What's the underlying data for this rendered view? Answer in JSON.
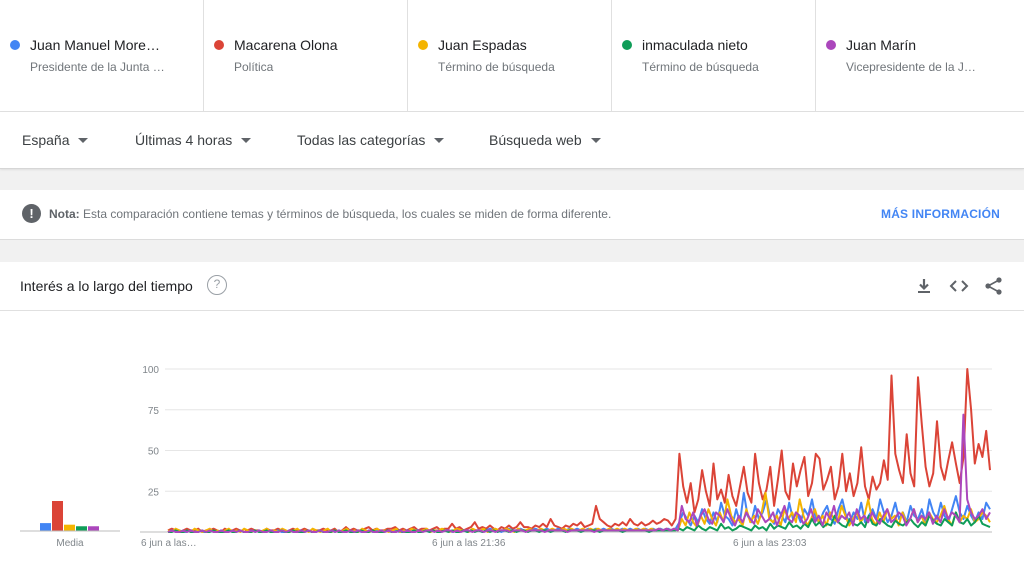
{
  "terms": [
    {
      "name": "Juan Manuel More…",
      "sub": "Presidente de la Junta …",
      "color": "#4285f4"
    },
    {
      "name": "Macarena Olona",
      "sub": "Política",
      "color": "#db4437"
    },
    {
      "name": "Juan Espadas",
      "sub": "Término de búsqueda",
      "color": "#f4b400"
    },
    {
      "name": "inmaculada nieto",
      "sub": "Término de búsqueda",
      "color": "#0f9d58"
    },
    {
      "name": "Juan Marín",
      "sub": "Vicepresidente de la J…",
      "color": "#ab47bc"
    }
  ],
  "filters": {
    "region": "España",
    "time": "Últimas 4 horas",
    "category": "Todas las categorías",
    "search_type": "Búsqueda web"
  },
  "note": {
    "label": "Nota:",
    "text": "Esta comparación contiene temas y términos de búsqueda, los cuales se miden de forma diferente.",
    "link": "MÁS INFORMACIÓN"
  },
  "chart_card": {
    "title": "Interés a lo largo del tiempo",
    "help_icon": "help-circle-icon",
    "actions": [
      "download-icon",
      "embed-code-icon",
      "share-icon"
    ]
  },
  "chart_data": {
    "type": "line",
    "ylim": [
      0,
      100
    ],
    "yticks": [
      "100",
      "75",
      "50",
      "25"
    ],
    "xticks": [
      "6 jun a las…",
      "6 jun a las 21:36",
      "6 jun a las 23:03"
    ],
    "average_label": "Media",
    "averages": [
      {
        "name": "Juan Manuel More…",
        "value": 5
      },
      {
        "name": "Macarena Olona",
        "value": 19
      },
      {
        "name": "Juan Espadas",
        "value": 4
      },
      {
        "name": "inmaculada nieto",
        "value": 3
      },
      {
        "name": "Juan Marín",
        "value": 3
      }
    ],
    "series": [
      {
        "name": "Macarena Olona",
        "color": "#db4437",
        "values": [
          1,
          2,
          1,
          0,
          1,
          2,
          1,
          1,
          2,
          0,
          1,
          1,
          2,
          1,
          0,
          2,
          1,
          1,
          2,
          1,
          0,
          1,
          2,
          1,
          1,
          0,
          2,
          1,
          1,
          2,
          1,
          0,
          1,
          2,
          1,
          1,
          2,
          1,
          0,
          1,
          1,
          2,
          1,
          1,
          2,
          0,
          1,
          3,
          1,
          2,
          1,
          1,
          2,
          3,
          1,
          2,
          1,
          1,
          2,
          2,
          3,
          1,
          2,
          1,
          2,
          3,
          1,
          2,
          2,
          1,
          2,
          3,
          1,
          2,
          2,
          5,
          2,
          3,
          1,
          2,
          3,
          6,
          2,
          3,
          2,
          4,
          2,
          1,
          3,
          2,
          4,
          2,
          3,
          6,
          3,
          3,
          2,
          4,
          3,
          5,
          3,
          8,
          4,
          3,
          2,
          4,
          3,
          5,
          4,
          6,
          3,
          4,
          5,
          16,
          8,
          6,
          4,
          3,
          5,
          4,
          6,
          4,
          8,
          5,
          4,
          6,
          4,
          5,
          7,
          5,
          6,
          8,
          7,
          4,
          8,
          48,
          28,
          18,
          30,
          12,
          20,
          38,
          25,
          16,
          42,
          20,
          26,
          18,
          35,
          22,
          16,
          28,
          40,
          24,
          18,
          48,
          30,
          20,
          26,
          40,
          16,
          32,
          50,
          25,
          20,
          42,
          28,
          38,
          46,
          22,
          30,
          48,
          45,
          26,
          32,
          40,
          20,
          28,
          48,
          25,
          36,
          22,
          30,
          52,
          28,
          20,
          34,
          26,
          30,
          44,
          32,
          96,
          48,
          38,
          30,
          60,
          36,
          28,
          95,
          66,
          40,
          28,
          36,
          68,
          40,
          32,
          44,
          55,
          42,
          30,
          46,
          100,
          75,
          42,
          54,
          46,
          62,
          38
        ]
      },
      {
        "name": "Juan Manuel More…",
        "color": "#4285f4",
        "values": [
          0,
          1,
          0,
          1,
          0,
          0,
          1,
          0,
          1,
          0,
          0,
          1,
          0,
          0,
          1,
          0,
          1,
          0,
          0,
          1,
          0,
          0,
          1,
          0,
          1,
          0,
          0,
          1,
          0,
          1,
          0,
          0,
          1,
          0,
          0,
          1,
          0,
          1,
          0,
          0,
          1,
          0,
          0,
          1,
          0,
          1,
          0,
          0,
          1,
          0,
          1,
          0,
          0,
          1,
          0,
          1,
          0,
          0,
          1,
          0,
          1,
          0,
          0,
          1,
          0,
          1,
          1,
          0,
          1,
          0,
          1,
          1,
          0,
          1,
          1,
          0,
          1,
          1,
          1,
          0,
          1,
          1,
          1,
          0,
          1,
          2,
          1,
          1,
          0,
          1,
          2,
          1,
          1,
          2,
          1,
          1,
          1,
          2,
          1,
          1,
          2,
          1,
          1,
          2,
          1,
          1,
          2,
          1,
          2,
          1,
          1,
          2,
          1,
          2,
          1,
          2,
          1,
          2,
          1,
          1,
          2,
          1,
          2,
          1,
          2,
          1,
          2,
          1,
          2,
          1,
          2,
          1,
          2,
          1,
          2,
          6,
          12,
          8,
          4,
          10,
          6,
          14,
          8,
          5,
          12,
          6,
          18,
          10,
          8,
          4,
          14,
          6,
          24,
          10,
          6,
          16,
          8,
          12,
          20,
          8,
          5,
          14,
          10,
          6,
          18,
          8,
          12,
          6,
          14,
          10,
          20,
          8,
          6,
          12,
          16,
          8,
          5,
          14,
          20,
          10,
          6,
          12,
          8,
          18,
          6,
          10,
          14,
          8,
          20,
          12,
          6,
          10,
          18,
          8,
          12,
          6,
          16,
          10,
          8,
          14,
          6,
          20,
          12,
          8,
          18,
          10,
          6,
          14,
          22,
          12,
          8,
          16,
          10,
          6,
          12,
          8,
          18,
          14
        ]
      },
      {
        "name": "Juan Espadas",
        "color": "#f4b400",
        "values": [
          1,
          0,
          2,
          1,
          0,
          1,
          0,
          2,
          1,
          0,
          1,
          2,
          0,
          1,
          0,
          1,
          2,
          0,
          1,
          0,
          2,
          1,
          0,
          1,
          0,
          1,
          2,
          0,
          1,
          0,
          2,
          1,
          0,
          1,
          2,
          0,
          1,
          0,
          2,
          1,
          0,
          1,
          2,
          0,
          1,
          0,
          1,
          2,
          0,
          1,
          0,
          2,
          1,
          0,
          1,
          2,
          0,
          1,
          0,
          1,
          2,
          0,
          1,
          0,
          2,
          1,
          0,
          1,
          2,
          0,
          1,
          1,
          2,
          1,
          0,
          1,
          2,
          1,
          1,
          0,
          2,
          1,
          1,
          2,
          0,
          1,
          2,
          1,
          1,
          2,
          1,
          0,
          2,
          1,
          1,
          2,
          1,
          1,
          2,
          1,
          1,
          2,
          1,
          1,
          2,
          1,
          2,
          1,
          1,
          2,
          1,
          2,
          1,
          2,
          1,
          1,
          2,
          1,
          2,
          1,
          2,
          1,
          1,
          2,
          1,
          2,
          1,
          2,
          1,
          2,
          1,
          2,
          1,
          2,
          1,
          8,
          4,
          12,
          6,
          3,
          10,
          5,
          14,
          8,
          4,
          12,
          6,
          20,
          10,
          6,
          8,
          4,
          14,
          6,
          10,
          5,
          12,
          24,
          8,
          6,
          10,
          4,
          14,
          8,
          12,
          6,
          20,
          10,
          4,
          8,
          14,
          6,
          10,
          4,
          12,
          8,
          6,
          16,
          10,
          4,
          8,
          12,
          6,
          10,
          20,
          8,
          4,
          12,
          6,
          14,
          8,
          10,
          4,
          12,
          6,
          8,
          14,
          6,
          10,
          4,
          12,
          8,
          6,
          10,
          16,
          8,
          4,
          12,
          6,
          10,
          8,
          14,
          6,
          8,
          12,
          10,
          6
        ]
      },
      {
        "name": "inmaculada nieto",
        "color": "#0f9d58",
        "values": [
          0,
          0,
          1,
          0,
          0,
          1,
          0,
          0,
          0,
          1,
          0,
          0,
          1,
          0,
          0,
          0,
          1,
          0,
          0,
          1,
          0,
          0,
          0,
          1,
          0,
          0,
          1,
          0,
          0,
          0,
          1,
          0,
          0,
          1,
          0,
          0,
          0,
          1,
          0,
          0,
          1,
          0,
          0,
          0,
          1,
          0,
          0,
          1,
          0,
          0,
          0,
          1,
          0,
          0,
          1,
          0,
          0,
          0,
          1,
          0,
          0,
          1,
          0,
          0,
          0,
          1,
          0,
          0,
          1,
          0,
          1,
          0,
          0,
          1,
          0,
          1,
          0,
          0,
          1,
          0,
          1,
          0,
          1,
          0,
          1,
          0,
          1,
          0,
          1,
          1,
          0,
          1,
          0,
          1,
          1,
          0,
          1,
          1,
          0,
          1,
          1,
          0,
          1,
          1,
          1,
          0,
          1,
          1,
          1,
          0,
          1,
          1,
          1,
          1,
          0,
          1,
          1,
          1,
          1,
          1,
          0,
          1,
          1,
          1,
          1,
          1,
          1,
          0,
          1,
          1,
          1,
          1,
          1,
          1,
          1,
          2,
          1,
          3,
          2,
          1,
          4,
          2,
          1,
          3,
          2,
          1,
          5,
          2,
          3,
          1,
          2,
          4,
          3,
          2,
          1,
          4,
          2,
          3,
          1,
          5,
          2,
          4,
          3,
          2,
          6,
          3,
          4,
          2,
          5,
          3,
          8,
          4,
          6,
          3,
          5,
          4,
          10,
          6,
          4,
          3,
          8,
          5,
          4,
          6,
          3,
          10,
          5,
          4,
          8,
          6,
          4,
          3,
          7,
          5,
          4,
          6,
          8,
          5,
          3,
          6,
          4,
          10,
          7,
          5,
          4,
          8,
          6,
          4,
          12,
          6,
          5,
          8,
          4,
          6,
          10,
          5,
          4,
          3
        ]
      },
      {
        "name": "Juan Marín",
        "color": "#ab47bc",
        "values": [
          0,
          1,
          0,
          0,
          1,
          0,
          1,
          0,
          0,
          1,
          0,
          1,
          0,
          0,
          1,
          0,
          0,
          1,
          0,
          1,
          0,
          0,
          1,
          0,
          1,
          0,
          0,
          1,
          0,
          0,
          1,
          0,
          1,
          0,
          0,
          1,
          0,
          1,
          0,
          0,
          1,
          0,
          0,
          1,
          0,
          1,
          0,
          0,
          1,
          0,
          1,
          0,
          0,
          1,
          0,
          0,
          1,
          0,
          1,
          0,
          0,
          1,
          0,
          1,
          0,
          0,
          1,
          0,
          1,
          1,
          0,
          1,
          0,
          1,
          1,
          0,
          1,
          0,
          1,
          1,
          0,
          1,
          1,
          0,
          1,
          1,
          0,
          1,
          1,
          1,
          0,
          1,
          1,
          1,
          0,
          1,
          1,
          1,
          1,
          0,
          1,
          1,
          1,
          1,
          1,
          0,
          1,
          1,
          1,
          1,
          1,
          1,
          0,
          1,
          1,
          1,
          1,
          1,
          1,
          1,
          1,
          1,
          1,
          1,
          1,
          1,
          1,
          1,
          1,
          2,
          1,
          2,
          1,
          2,
          1,
          16,
          8,
          6,
          12,
          4,
          10,
          14,
          8,
          5,
          12,
          10,
          6,
          14,
          8,
          4,
          10,
          6,
          12,
          8,
          5,
          14,
          10,
          6,
          8,
          12,
          4,
          10,
          16,
          8,
          6,
          12,
          10,
          5,
          8,
          14,
          6,
          10,
          4,
          12,
          8,
          16,
          6,
          10,
          8,
          12,
          4,
          14,
          8,
          10,
          6,
          12,
          8,
          5,
          10,
          14,
          6,
          8,
          12,
          10,
          4,
          8,
          14,
          6,
          10,
          8,
          12,
          5,
          10,
          6,
          14,
          8,
          12,
          10,
          6,
          72,
          20,
          12,
          8,
          10,
          14,
          8,
          12
        ]
      }
    ]
  }
}
